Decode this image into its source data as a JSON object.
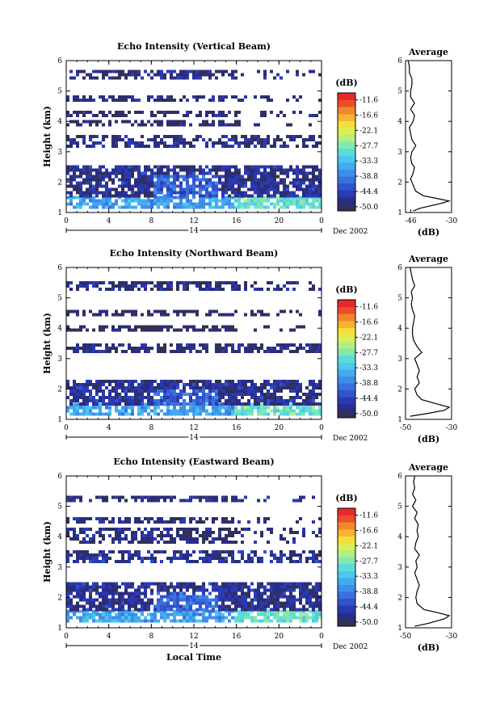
{
  "figure": {
    "xlabel": "Local Time",
    "date_label": "Dec 2002",
    "day_label": "14",
    "colorbar_unit": "(dB)",
    "colorbar_ticks": [
      "-11.6",
      "-16.6",
      "-22.1",
      "-27.7",
      "-33.3",
      "-38.8",
      "-44.4",
      "-50.0"
    ],
    "colors": {
      "scale": [
        "#30305a",
        "#2a2d86",
        "#2b3ab3",
        "#3054cf",
        "#3a70de",
        "#3e8ee8",
        "#43abef",
        "#4cc7ef",
        "#5cdcd8",
        "#83e7b0",
        "#b4ee82",
        "#dbef55",
        "#f4df3a",
        "#f7b431",
        "#f4862c",
        "#ee4d2a",
        "#e62a28"
      ]
    }
  },
  "chart_data": [
    {
      "type": "heatmap",
      "title": "Echo Intensity (Vertical Beam)",
      "xlabel": "",
      "ylabel": "Height (km)",
      "xlim": [
        0,
        24
      ],
      "ylim": [
        1,
        6
      ],
      "x_ticks": [
        "0",
        "4",
        "8",
        "12",
        "16",
        "20",
        "0"
      ],
      "y_ticks": [
        "1",
        "2",
        "3",
        "4",
        "5",
        "6"
      ],
      "value_unit": "dB",
      "value_range": [
        -50.0,
        -11.6
      ],
      "layers": [
        {
          "bottom": 1.2,
          "top": 1.55,
          "level": -36
        },
        {
          "bottom": 1.55,
          "top": 2.55,
          "level": -46
        },
        {
          "bottom": 3.2,
          "top": 3.55,
          "level": -47
        },
        {
          "bottom": 3.9,
          "top": 4.05,
          "level": -48
        },
        {
          "bottom": 4.2,
          "top": 4.35,
          "level": -48
        },
        {
          "bottom": 4.65,
          "top": 4.85,
          "level": -47
        },
        {
          "bottom": 5.4,
          "top": 5.7,
          "level": -47
        }
      ],
      "average_profile": {
        "title": "Average",
        "xlabel": "(dB)",
        "x_ticks": [
          "-46",
          "-30"
        ],
        "xlim": [
          -48,
          -30
        ],
        "y_ticks": [
          "1",
          "2",
          "3",
          "4",
          "5",
          "6"
        ],
        "height": [
          1.05,
          1.15,
          1.3,
          1.38,
          1.45,
          1.55,
          1.7,
          1.9,
          2.1,
          2.3,
          2.5,
          2.6,
          2.8,
          3.0,
          3.2,
          3.4,
          3.6,
          3.8,
          4.0,
          4.2,
          4.4,
          4.6,
          4.8,
          5.0,
          5.2,
          5.4,
          5.6,
          5.8,
          6.0
        ],
        "value": [
          -45,
          -42,
          -34,
          -31,
          -35,
          -41,
          -44,
          -45,
          -46,
          -45,
          -44.5,
          -45.5,
          -46,
          -45.5,
          -44,
          -45.5,
          -46,
          -46.5,
          -45,
          -44.5,
          -46,
          -44.5,
          -46,
          -46,
          -45.5,
          -45.5,
          -46.5,
          -46.5,
          -47
        ]
      }
    },
    {
      "type": "heatmap",
      "title": "Echo Intensity (Northward Beam)",
      "xlabel": "",
      "ylabel": "Height (km)",
      "xlim": [
        0,
        24
      ],
      "ylim": [
        1,
        6
      ],
      "x_ticks": [
        "0",
        "4",
        "8",
        "12",
        "16",
        "20",
        "0"
      ],
      "y_ticks": [
        "1",
        "2",
        "3",
        "4",
        "5",
        "6"
      ],
      "value_unit": "dB",
      "value_range": [
        -50.0,
        -11.6
      ],
      "layers": [
        {
          "bottom": 1.15,
          "top": 1.55,
          "level": -36
        },
        {
          "bottom": 1.55,
          "top": 2.3,
          "level": -46
        },
        {
          "bottom": 3.2,
          "top": 3.5,
          "level": -47
        },
        {
          "bottom": 3.9,
          "top": 4.1,
          "level": -49
        },
        {
          "bottom": 4.45,
          "top": 4.6,
          "level": -49
        },
        {
          "bottom": 5.3,
          "top": 5.55,
          "level": -47
        }
      ],
      "average_profile": {
        "title": "Average",
        "xlabel": "(dB)",
        "x_ticks": [
          "-50",
          "-30"
        ],
        "xlim": [
          -50,
          -30
        ],
        "y_ticks": [
          "1",
          "2",
          "3",
          "4",
          "5",
          "6"
        ],
        "height": [
          1.1,
          1.2,
          1.3,
          1.4,
          1.5,
          1.65,
          1.8,
          2.0,
          2.2,
          2.4,
          2.6,
          2.8,
          3.0,
          3.2,
          3.4,
          3.6,
          3.8,
          4.0,
          4.2,
          4.4,
          4.6,
          4.8,
          5.0,
          5.2,
          5.4,
          5.6,
          5.8,
          6.0
        ],
        "value": [
          -48,
          -40,
          -33,
          -31,
          -36,
          -43,
          -45,
          -46,
          -44,
          -45,
          -44,
          -45,
          -46,
          -43,
          -45,
          -46.5,
          -47,
          -47,
          -46.5,
          -46,
          -47,
          -47.5,
          -47,
          -47.5,
          -46,
          -47,
          -47.5,
          -48
        ]
      }
    },
    {
      "type": "heatmap",
      "title": "Echo Intensity (Eastward Beam)",
      "xlabel": "Local Time",
      "ylabel": "Height (km)",
      "xlim": [
        0,
        24
      ],
      "ylim": [
        1,
        6
      ],
      "x_ticks": [
        "0",
        "4",
        "8",
        "12",
        "16",
        "20",
        "0"
      ],
      "y_ticks": [
        "1",
        "2",
        "3",
        "4",
        "5",
        "6"
      ],
      "value_unit": "dB",
      "value_range": [
        -50.0,
        -11.6
      ],
      "layers": [
        {
          "bottom": 1.2,
          "top": 1.6,
          "level": -36
        },
        {
          "bottom": 1.6,
          "top": 2.5,
          "level": -46
        },
        {
          "bottom": 3.15,
          "top": 3.55,
          "level": -46
        },
        {
          "bottom": 3.8,
          "top": 4.3,
          "level": -47
        },
        {
          "bottom": 4.45,
          "top": 4.65,
          "level": -47
        },
        {
          "bottom": 5.2,
          "top": 5.35,
          "level": -47
        }
      ],
      "average_profile": {
        "title": "Average",
        "xlabel": "(dB)",
        "x_ticks": [
          "-50",
          "-30"
        ],
        "xlim": [
          -50,
          -30
        ],
        "y_ticks": [
          "1",
          "2",
          "3",
          "4",
          "5",
          "6"
        ],
        "height": [
          1.05,
          1.15,
          1.3,
          1.4,
          1.5,
          1.6,
          1.8,
          2.0,
          2.2,
          2.4,
          2.6,
          2.8,
          3.0,
          3.2,
          3.4,
          3.6,
          3.8,
          4.0,
          4.2,
          4.4,
          4.6,
          4.8,
          5.0,
          5.2,
          5.4,
          5.6,
          5.8,
          6.0
        ],
        "value": [
          -46,
          -40,
          -33,
          -31,
          -36,
          -42,
          -45,
          -45.5,
          -45,
          -44,
          -45,
          -46,
          -45,
          -45.5,
          -44,
          -46,
          -45.5,
          -44.5,
          -45,
          -44.5,
          -46,
          -45,
          -47,
          -45.5,
          -47,
          -46,
          -46.5,
          -46
        ]
      }
    }
  ]
}
